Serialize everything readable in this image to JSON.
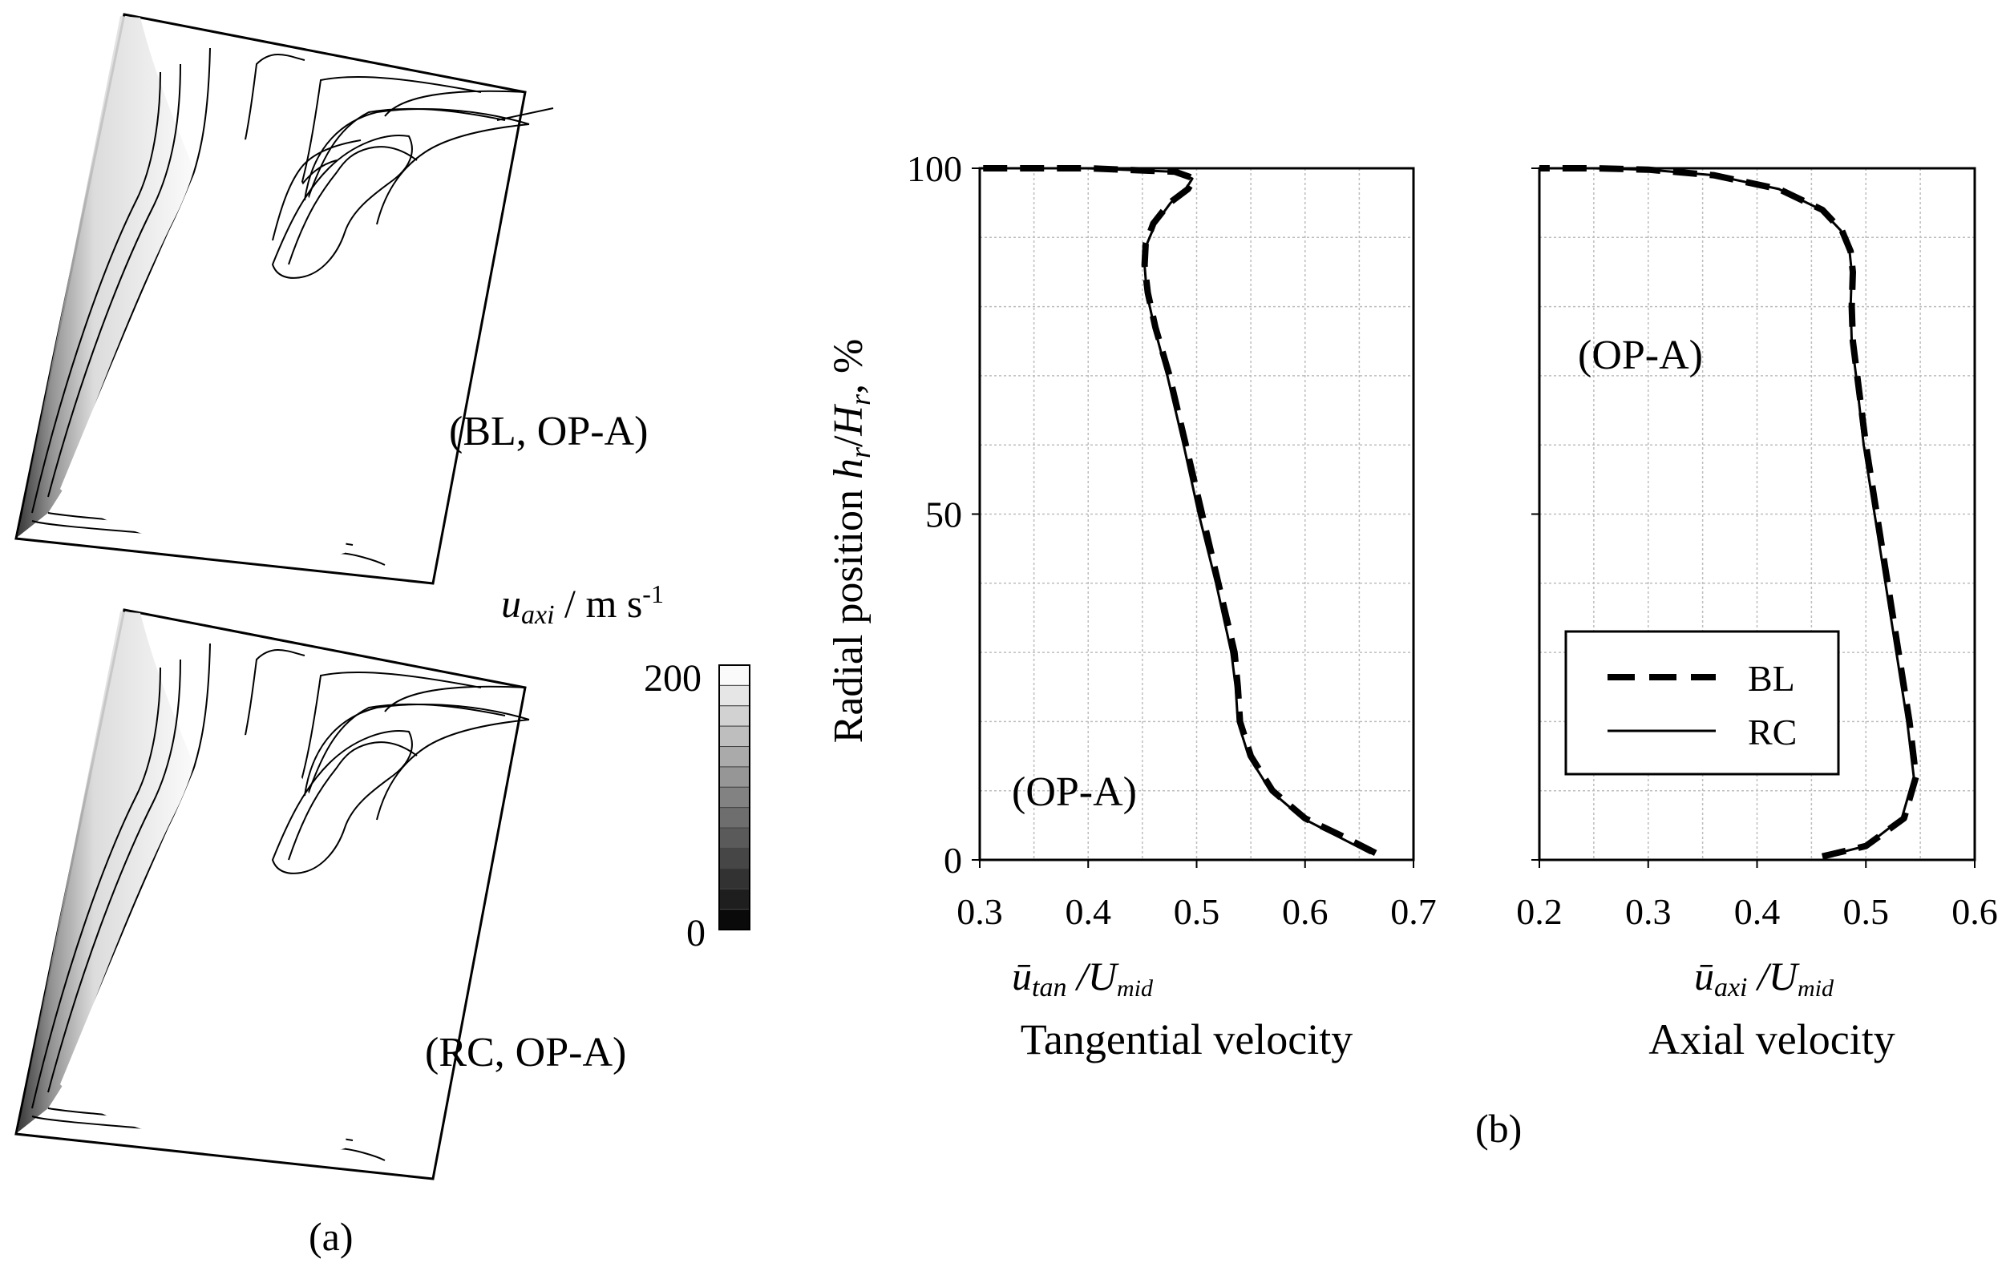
{
  "panel_a": {
    "label": "(a)",
    "top_caption": "(BL, OP-A)",
    "bottom_caption": "(RC, OP-A)",
    "colorbar": {
      "symbol": "u",
      "subscript": "axi",
      "unit": " / m s",
      "unit_exp": "-1",
      "max_label": "200",
      "min_label": "0",
      "min": 0,
      "max": 200,
      "levels": 13
    }
  },
  "panel_b": {
    "label": "(b)",
    "ylabel_text": "Radial position",
    "ylabel_h": "h",
    "ylabel_H": "H",
    "ylabel_sub": "r",
    "ylabel_slash": "/",
    "ylabel_unit": ",  %",
    "legend": {
      "bl": "BL",
      "rc": "RC"
    }
  },
  "chart_data": [
    {
      "type": "line",
      "title": "Tangential velocity",
      "annotation": "(OP-A)",
      "xlabel_base": "ū",
      "xlabel_sub": "tan",
      "xlabel_U": "/U",
      "xlabel_Usub": "mid",
      "xlabel": "Tangential velocity",
      "ylabel": "Radial position h_r/H_r, %",
      "xlim": [
        0.3,
        0.7
      ],
      "ylim": [
        0,
        100
      ],
      "xticks": [
        "0.3",
        "0.4",
        "0.5",
        "0.6",
        "0.7"
      ],
      "yticks": [
        "0",
        "50",
        "100"
      ],
      "series": [
        {
          "name": "BL",
          "style": "dashed",
          "x": [
            0.665,
            0.64,
            0.6,
            0.57,
            0.55,
            0.54,
            0.538,
            0.535,
            0.52,
            0.505,
            0.49,
            0.475,
            0.462,
            0.455,
            0.452,
            0.453,
            0.46,
            0.475,
            0.492,
            0.498,
            0.48,
            0.4,
            0.3
          ],
          "y": [
            1,
            3,
            6,
            10,
            15,
            20,
            25,
            30,
            40,
            50,
            60,
            70,
            77,
            82,
            86,
            89,
            92,
            95,
            97,
            98.5,
            99.5,
            100,
            100
          ]
        },
        {
          "name": "RC",
          "style": "solid",
          "x": [
            0.66,
            0.635,
            0.598,
            0.568,
            0.548,
            0.538,
            0.536,
            0.532,
            0.518,
            0.502,
            0.488,
            0.473,
            0.461,
            0.454,
            0.452,
            0.454,
            0.462,
            0.476,
            0.49,
            0.496,
            0.478,
            0.4,
            0.3
          ],
          "y": [
            1,
            3,
            6,
            10,
            15,
            20,
            25,
            30,
            40,
            50,
            60,
            70,
            77,
            82,
            86,
            89,
            92,
            95,
            97,
            98.5,
            99.5,
            100,
            100
          ]
        }
      ]
    },
    {
      "type": "line",
      "title": "Axial velocity",
      "annotation": "(OP-A)",
      "xlabel_base": "ū",
      "xlabel_sub": "axi",
      "xlabel_U": "/U",
      "xlabel_Usub": "mid",
      "xlabel": "Axial velocity",
      "ylabel": "Radial position h_r/H_r, %",
      "xlim": [
        0.2,
        0.6
      ],
      "ylim": [
        0,
        100
      ],
      "xticks": [
        "0.2",
        "0.3",
        "0.4",
        "0.5",
        "0.6"
      ],
      "yticks": [
        "0",
        "50",
        "100"
      ],
      "series": [
        {
          "name": "BL",
          "style": "dashed",
          "x": [
            0.46,
            0.5,
            0.535,
            0.546,
            0.54,
            0.53,
            0.52,
            0.51,
            0.5,
            0.492,
            0.488,
            0.487,
            0.488,
            0.486,
            0.478,
            0.46,
            0.42,
            0.36,
            0.3,
            0.25,
            0.2
          ],
          "y": [
            0.5,
            2,
            6,
            12,
            20,
            30,
            40,
            50,
            60,
            70,
            75,
            80,
            85,
            88,
            91,
            94,
            97,
            99,
            99.8,
            100,
            100
          ]
        },
        {
          "name": "RC",
          "style": "solid",
          "x": [
            0.462,
            0.5,
            0.533,
            0.544,
            0.538,
            0.528,
            0.518,
            0.508,
            0.498,
            0.491,
            0.487,
            0.486,
            0.487,
            0.485,
            0.477,
            0.459,
            0.42,
            0.36,
            0.3,
            0.25,
            0.2
          ],
          "y": [
            0.5,
            2,
            6,
            12,
            20,
            30,
            40,
            50,
            60,
            70,
            75,
            80,
            85,
            88,
            91,
            94,
            97,
            99,
            99.8,
            100,
            100
          ]
        }
      ]
    }
  ]
}
